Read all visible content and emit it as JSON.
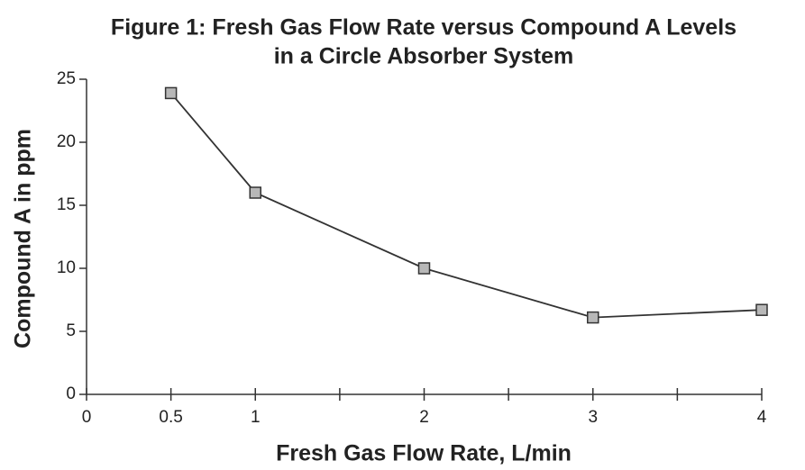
{
  "chart_data": {
    "type": "line",
    "title": [
      "Figure 1: Fresh Gas Flow Rate versus Compound A Levels",
      "in a Circle Absorber System"
    ],
    "x_label": "Fresh Gas Flow Rate, L/min",
    "y_label": "Compound A in ppm",
    "x": [
      0.5,
      1,
      2,
      3,
      4
    ],
    "series": [
      {
        "name": "Compound A",
        "color": "#333333",
        "marker_color": "#b8b8b8",
        "values": [
          23.9,
          16.0,
          10.0,
          6.1,
          6.7
        ]
      }
    ],
    "xlim": [
      0,
      4
    ],
    "xticks": [
      0,
      0.5,
      1,
      2,
      3,
      4
    ],
    "xminorticks": [
      1.5,
      2.5,
      3.5
    ],
    "ylim": [
      0,
      25
    ],
    "yticks": [
      0,
      5,
      10,
      15,
      20,
      25
    ],
    "grid": false
  }
}
